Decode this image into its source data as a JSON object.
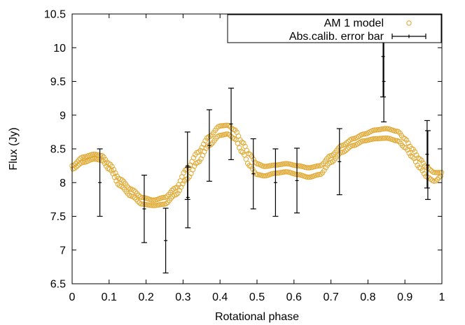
{
  "chart_data": {
    "type": "scatter",
    "title": "",
    "xlabel": "Rotational phase",
    "ylabel": "Flux (Jy)",
    "xlim": [
      0,
      1
    ],
    "ylim": [
      6.5,
      10.5
    ],
    "x_ticks": [
      0,
      0.1,
      0.2,
      0.3,
      0.4,
      0.5,
      0.6,
      0.7,
      0.8,
      0.9,
      1
    ],
    "x_tick_labels": [
      "0",
      "0.1",
      "0.2",
      "0.3",
      "0.4",
      "0.5",
      "0.6",
      "0.7",
      "0.8",
      "0.9",
      "1"
    ],
    "y_ticks": [
      6.5,
      7,
      7.5,
      8,
      8.5,
      9,
      9.5,
      10,
      10.5
    ],
    "y_tick_labels": [
      "6.5",
      "7",
      "7.5",
      "8",
      "8.5",
      "9",
      "9.5",
      "10",
      "10.5"
    ],
    "grid": false,
    "legend_position": "top-right",
    "series": [
      {
        "name": "AM 1 model",
        "kind": "points",
        "marker": "open-circle",
        "color": "#e0a830",
        "band_upper": {
          "x": [
            0.0,
            0.03,
            0.06,
            0.08,
            0.1,
            0.13,
            0.16,
            0.19,
            0.22,
            0.25,
            0.28,
            0.31,
            0.34,
            0.37,
            0.4,
            0.42,
            0.44,
            0.46,
            0.48,
            0.5,
            0.52,
            0.55,
            0.58,
            0.61,
            0.64,
            0.67,
            0.7,
            0.73,
            0.76,
            0.79,
            0.82,
            0.85,
            0.88,
            0.9,
            0.92,
            0.94,
            0.96,
            0.98,
            1.0
          ],
          "y": [
            8.25,
            8.38,
            8.42,
            8.4,
            8.28,
            8.05,
            7.9,
            7.78,
            7.74,
            7.78,
            7.92,
            8.2,
            8.45,
            8.68,
            8.84,
            8.85,
            8.78,
            8.6,
            8.42,
            8.28,
            8.24,
            8.26,
            8.28,
            8.25,
            8.22,
            8.25,
            8.4,
            8.55,
            8.65,
            8.72,
            8.78,
            8.8,
            8.76,
            8.65,
            8.5,
            8.35,
            8.22,
            8.15,
            8.15
          ]
        },
        "band_lower": {
          "x": [
            0.0,
            0.03,
            0.06,
            0.08,
            0.1,
            0.13,
            0.16,
            0.19,
            0.22,
            0.25,
            0.28,
            0.31,
            0.34,
            0.37,
            0.4,
            0.42,
            0.44,
            0.46,
            0.48,
            0.5,
            0.52,
            0.55,
            0.58,
            0.61,
            0.64,
            0.67,
            0.7,
            0.73,
            0.76,
            0.79,
            0.82,
            0.85,
            0.88,
            0.9,
            0.92,
            0.94,
            0.96,
            0.98,
            1.0
          ],
          "y": [
            8.2,
            8.3,
            8.35,
            8.33,
            8.2,
            7.95,
            7.8,
            7.68,
            7.66,
            7.68,
            7.82,
            8.05,
            8.3,
            8.55,
            8.7,
            8.72,
            8.65,
            8.45,
            8.25,
            8.12,
            8.1,
            8.14,
            8.16,
            8.12,
            8.08,
            8.12,
            8.3,
            8.45,
            8.55,
            8.62,
            8.65,
            8.66,
            8.62,
            8.52,
            8.38,
            8.22,
            8.08,
            8.02,
            8.1
          ]
        }
      },
      {
        "name": "Abs.calib. error bar",
        "kind": "errorbars",
        "color": "#000000",
        "points": [
          {
            "x": 0.075,
            "y": 8.0,
            "err": 0.5
          },
          {
            "x": 0.195,
            "y": 7.61,
            "err": 0.5
          },
          {
            "x": 0.253,
            "y": 7.14,
            "err": 0.48
          },
          {
            "x": 0.312,
            "y": 8.25,
            "err": 0.5
          },
          {
            "x": 0.313,
            "y": 7.78,
            "err": 0.45
          },
          {
            "x": 0.371,
            "y": 8.55,
            "err": 0.53
          },
          {
            "x": 0.43,
            "y": 8.87,
            "err": 0.53
          },
          {
            "x": 0.49,
            "y": 8.13,
            "err": 0.52
          },
          {
            "x": 0.55,
            "y": 8.0,
            "err": 0.5
          },
          {
            "x": 0.608,
            "y": 8.03,
            "err": 0.48
          },
          {
            "x": 0.723,
            "y": 8.31,
            "err": 0.49
          },
          {
            "x": 0.841,
            "y": 9.87,
            "err": 0.6
          },
          {
            "x": 0.843,
            "y": 9.5,
            "err": 0.6
          },
          {
            "x": 0.96,
            "y": 8.42,
            "err": 0.5
          },
          {
            "x": 0.962,
            "y": 8.26,
            "err": 0.51
          }
        ]
      }
    ]
  }
}
